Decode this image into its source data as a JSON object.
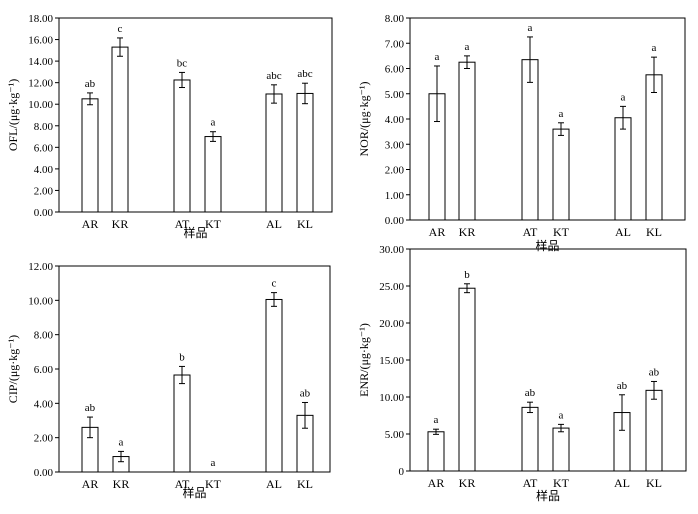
{
  "chart_data": [
    {
      "type": "bar",
      "ylabel": "OFL/(μg·kg⁻¹)",
      "xlabel": "样品",
      "categories": [
        "AR",
        "KR",
        "AT",
        "KT",
        "AL",
        "KL"
      ],
      "values": [
        10.5,
        15.3,
        12.25,
        7.0,
        10.95,
        11.0
      ],
      "errors": [
        0.55,
        0.85,
        0.7,
        0.45,
        0.85,
        0.95
      ],
      "labels": [
        "ab",
        "c",
        "bc",
        "a",
        "abc",
        "abc"
      ],
      "ylim": [
        0,
        18
      ],
      "yticks": [
        "0.00",
        "2.00",
        "4.00",
        "6.00",
        "8.00",
        "10.00",
        "12.00",
        "14.00",
        "16.00",
        "18.00"
      ]
    },
    {
      "type": "bar",
      "ylabel": "NOR/(μg·kg⁻¹)",
      "xlabel": "样品",
      "categories": [
        "AR",
        "KR",
        "AT",
        "KT",
        "AL",
        "KL"
      ],
      "values": [
        5.0,
        6.25,
        6.35,
        3.6,
        4.05,
        5.75
      ],
      "errors": [
        1.1,
        0.25,
        0.9,
        0.25,
        0.45,
        0.7
      ],
      "labels": [
        "a",
        "a",
        "a",
        "a",
        "a",
        "a"
      ],
      "ylim": [
        0,
        8
      ],
      "yticks": [
        "0.00",
        "1.00",
        "2.00",
        "3.00",
        "4.00",
        "5.00",
        "6.00",
        "7.00",
        "8.00"
      ]
    },
    {
      "type": "bar",
      "ylabel": "CIP/(μg·kg⁻¹)",
      "xlabel": "样品",
      "categories": [
        "AR",
        "KR",
        "AT",
        "KT",
        "AL",
        "KL"
      ],
      "values": [
        2.6,
        0.9,
        5.65,
        0,
        10.05,
        3.3
      ],
      "errors": [
        0.6,
        0.3,
        0.5,
        0,
        0.4,
        0.75
      ],
      "labels": [
        "ab",
        "a",
        "b",
        "a",
        "c",
        "ab"
      ],
      "ylim": [
        0,
        12
      ],
      "yticks": [
        "0.00",
        "2.00",
        "4.00",
        "6.00",
        "8.00",
        "10.00",
        "12.00"
      ]
    },
    {
      "type": "bar",
      "ylabel": "ENR/(μg·kg⁻¹)",
      "xlabel": "样品",
      "categories": [
        "AR",
        "KR",
        "AT",
        "KT",
        "AL",
        "KL"
      ],
      "values": [
        5.3,
        24.7,
        8.6,
        5.8,
        7.9,
        10.9
      ],
      "errors": [
        0.35,
        0.6,
        0.7,
        0.5,
        2.4,
        1.2
      ],
      "labels": [
        "a",
        "b",
        "ab",
        "a",
        "ab",
        "ab"
      ],
      "ylim": [
        0,
        30
      ],
      "yticks": [
        "0",
        "5.00",
        "10.00",
        "15.00",
        "20.00",
        "25.00",
        "30.00"
      ]
    }
  ]
}
